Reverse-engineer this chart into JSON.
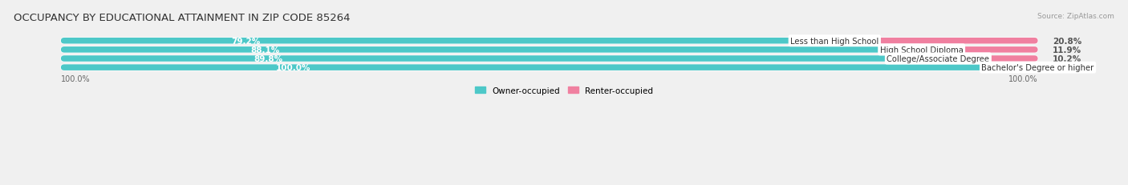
{
  "title": "OCCUPANCY BY EDUCATIONAL ATTAINMENT IN ZIP CODE 85264",
  "source": "Source: ZipAtlas.com",
  "categories": [
    "Less than High School",
    "High School Diploma",
    "College/Associate Degree",
    "Bachelor's Degree or higher"
  ],
  "owner_values": [
    79.2,
    88.1,
    89.8,
    100.0
  ],
  "renter_values": [
    20.8,
    11.9,
    10.2,
    0.0
  ],
  "owner_color": "#4dc8c8",
  "renter_color": "#f080a0",
  "bg_color": "#f0f0f0",
  "bar_bg_color": "#e0e0e0",
  "title_fontsize": 9.5,
  "value_fontsize": 7.5,
  "cat_fontsize": 7.2,
  "bar_height": 0.68,
  "legend_owner": "Owner-occupied",
  "legend_renter": "Renter-occupied",
  "x_left_label": "100.0%",
  "x_right_label": "100.0%"
}
